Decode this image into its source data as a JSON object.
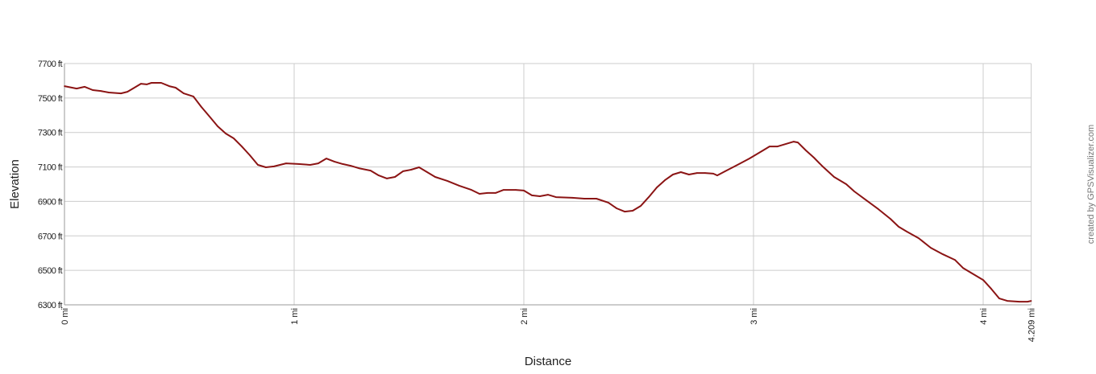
{
  "chart_data": {
    "type": "line",
    "title": "",
    "xlabel": "Distance",
    "ylabel": "Elevation",
    "xlim": [
      0,
      4.209
    ],
    "ylim": [
      6300,
      7700
    ],
    "grid": true,
    "x_ticks": [
      {
        "value": 0,
        "label": "0 mi"
      },
      {
        "value": 1,
        "label": "1 mi"
      },
      {
        "value": 2,
        "label": "2 mi"
      },
      {
        "value": 3,
        "label": "3 mi"
      },
      {
        "value": 4,
        "label": "4 mi"
      },
      {
        "value": 4.209,
        "label": "4.209 mi"
      }
    ],
    "y_ticks": [
      {
        "value": 7700,
        "label": "7700 ft"
      },
      {
        "value": 7500,
        "label": "7500 ft"
      },
      {
        "value": 7300,
        "label": "7300 ft"
      },
      {
        "value": 7100,
        "label": "7100 ft"
      },
      {
        "value": 6900,
        "label": "6900 ft"
      },
      {
        "value": 6700,
        "label": "6700 ft"
      },
      {
        "value": 6500,
        "label": "6500 ft"
      },
      {
        "value": 6300,
        "label": "6300 ft"
      }
    ],
    "line_color": "#8b1414",
    "grid_color": "#cccccc",
    "series": [
      {
        "x": [
          0,
          0.053,
          0.088,
          0.123,
          0.158,
          0.193,
          0.246,
          0.274,
          0.298,
          0.333,
          0.358,
          0.379,
          0.421,
          0.456,
          0.484,
          0.519,
          0.561,
          0.596,
          0.632,
          0.667,
          0.702,
          0.737,
          0.772,
          0.807,
          0.842,
          0.877,
          0.912,
          0.965,
          1.018,
          1.07,
          1.105,
          1.14,
          1.175,
          1.211,
          1.246,
          1.281,
          1.333,
          1.368,
          1.404,
          1.439,
          1.474,
          1.509,
          1.544,
          1.579,
          1.614,
          1.667,
          1.719,
          1.772,
          1.807,
          1.842,
          1.877,
          1.912,
          1.965,
          2.0,
          2.035,
          2.07,
          2.105,
          2.14,
          2.211,
          2.263,
          2.316,
          2.368,
          2.404,
          2.439,
          2.474,
          2.509,
          2.544,
          2.579,
          2.614,
          2.649,
          2.684,
          2.719,
          2.754,
          2.789,
          2.825,
          2.842,
          2.877,
          2.93,
          2.982,
          3.035,
          3.07,
          3.105,
          3.14,
          3.175,
          3.193,
          3.228,
          3.263,
          3.298,
          3.351,
          3.404,
          3.439,
          3.491,
          3.544,
          3.596,
          3.632,
          3.667,
          3.719,
          3.772,
          3.825,
          3.877,
          3.912,
          3.947,
          4.0,
          4.035,
          4.07,
          4.105,
          4.158,
          4.193,
          4.209
        ],
        "y": [
          7569,
          7555,
          7565,
          7546,
          7541,
          7532,
          7527,
          7536,
          7555,
          7583,
          7579,
          7588,
          7588,
          7569,
          7560,
          7527,
          7509,
          7448,
          7392,
          7336,
          7294,
          7266,
          7219,
          7168,
          7112,
          7098,
          7103,
          7121,
          7117,
          7112,
          7121,
          7149,
          7131,
          7117,
          7107,
          7093,
          7079,
          7051,
          7033,
          7042,
          7075,
          7084,
          7098,
          7070,
          7042,
          7019,
          6991,
          6967,
          6944,
          6949,
          6949,
          6967,
          6967,
          6963,
          6935,
          6930,
          6939,
          6925,
          6921,
          6916,
          6916,
          6893,
          6860,
          6841,
          6846,
          6874,
          6925,
          6981,
          7023,
          7056,
          7070,
          7056,
          7065,
          7065,
          7061,
          7051,
          7075,
          7112,
          7149,
          7191,
          7219,
          7219,
          7233,
          7247,
          7242,
          7196,
          7154,
          7107,
          7042,
          7000,
          6958,
          6907,
          6855,
          6799,
          6753,
          6725,
          6687,
          6631,
          6593,
          6561,
          6514,
          6486,
          6444,
          6393,
          6337,
          6323,
          6318,
          6318,
          6323
        ]
      }
    ]
  },
  "attribution": "created by GPSVisualizer.com"
}
